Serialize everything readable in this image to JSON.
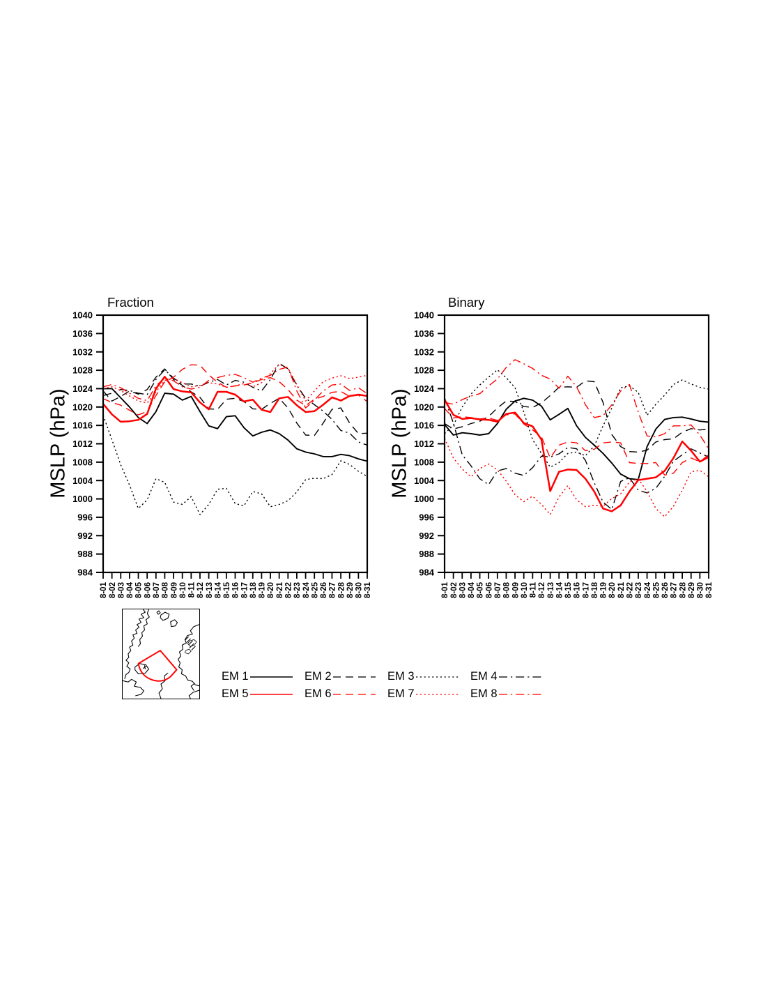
{
  "chart_data": [
    {
      "type": "line",
      "title": "Fraction",
      "ylabel": "MSLP (hPa)",
      "ylim": [
        984,
        1040
      ],
      "ytick_step": 4,
      "y_ticks": [
        984,
        988,
        992,
        996,
        1000,
        1004,
        1008,
        1012,
        1016,
        1020,
        1024,
        1028,
        1032,
        1036,
        1040
      ],
      "grid": false,
      "x_labels": [
        "8-01",
        "8-02",
        "8-03",
        "8-04",
        "8-05",
        "8-06",
        "8-07",
        "8-08",
        "8-09",
        "8-10",
        "8-11",
        "8-12",
        "8-13",
        "8-14",
        "8-15",
        "8-16",
        "8-17",
        "8-18",
        "8-19",
        "8-20",
        "8-21",
        "8-22",
        "8-23",
        "8-24",
        "8-25",
        "8-26",
        "8-27",
        "8-28",
        "8-29",
        "8-30",
        "8-31"
      ],
      "series": [
        {
          "name": "EM 1",
          "color": "#000000",
          "style": "solid",
          "values": [
            1024,
            1024,
            1022,
            1020,
            1017.7,
            1016.4,
            1019,
            1023,
            1022.8,
            1021.5,
            1022.3,
            1019,
            1015.9,
            1015.3,
            1017.9,
            1018.1,
            1015.5,
            1013.7,
            1014.5,
            1015,
            1014.2,
            1012.8,
            1010.9,
            1010.2,
            1009.8,
            1009.2,
            1009.2,
            1009.7,
            1009.4,
            1008.7,
            1008.2
          ]
        },
        {
          "name": "EM 2",
          "color": "#000000",
          "style": "dash",
          "values": [
            1023.5,
            1021.3,
            1022.3,
            1023.5,
            1022.8,
            1023.8,
            1026.5,
            1028.3,
            1026,
            1024.7,
            1023.3,
            1022.1,
            1019.6,
            1019.5,
            1021.7,
            1021.9,
            1021.2,
            1019.6,
            1019.5,
            1020.8,
            1021.9,
            1019.8,
            1016.5,
            1013.9,
            1013.8,
            1016.5,
            1019.5,
            1019.8,
            1016.5,
            1014.2,
            1014.3
          ]
        },
        {
          "name": "EM 3",
          "color": "#000000",
          "style": "dot",
          "values": [
            1018.2,
            1012.9,
            1007.4,
            1003,
            997.9,
            999.8,
            1004.4,
            1003.6,
            999.3,
            998.8,
            1000.5,
            996.6,
            998.8,
            1002.1,
            1002.3,
            999,
            998.5,
            1001.6,
            1001.1,
            998.3,
            998.8,
            999.6,
            1001.5,
            1004.2,
            1004.5,
            1004.4,
            1005.3,
            1008.3,
            1007.5,
            1006,
            1004.9
          ]
        },
        {
          "name": "EM 4",
          "color": "#000000",
          "style": "dashdot",
          "values": [
            1022.5,
            1023,
            1023.8,
            1023.6,
            1023,
            1022.7,
            1026,
            1028.1,
            1026.3,
            1025,
            1025,
            1024.5,
            1025.4,
            1026,
            1024.8,
            1025.8,
            1025.4,
            1024.3,
            1023.5,
            1026,
            1029.5,
            1028.3,
            1024.7,
            1021.9,
            1020.5,
            1019.1,
            1017.3,
            1014.9,
            1014.3,
            1012.4,
            1011.7
          ]
        },
        {
          "name": "EM 5",
          "color": "#ff0000",
          "style": "solid",
          "values": [
            1020.7,
            1018.4,
            1016.8,
            1016.9,
            1017.2,
            1018.5,
            1024,
            1026.6,
            1023.9,
            1023.4,
            1023.2,
            1021,
            1019.5,
            1023.3,
            1023.3,
            1022.7,
            1021.2,
            1021.6,
            1019.4,
            1018.9,
            1021.9,
            1022.2,
            1020.4,
            1018.9,
            1019.1,
            1020.5,
            1022.1,
            1021.4,
            1022.4,
            1022.7,
            1022.4
          ]
        },
        {
          "name": "EM 6",
          "color": "#ff0000",
          "style": "dash",
          "values": [
            1021.8,
            1021,
            1020.4,
            1019.3,
            1018.3,
            1019,
            1022.5,
            1025.5,
            1026.5,
            1028.2,
            1029.2,
            1029.1,
            1027,
            1025.4,
            1024.3,
            1024.6,
            1024.8,
            1025.3,
            1026,
            1026.4,
            1025.5,
            1023.8,
            1021.5,
            1020.3,
            1021.7,
            1022.3,
            1023.2,
            1023.4,
            1022.3,
            1022.6,
            1021.2
          ]
        },
        {
          "name": "EM 7",
          "color": "#ff0000",
          "style": "dot",
          "values": [
            1024,
            1024.4,
            1023.6,
            1022.4,
            1021.3,
            1020.9,
            1023.3,
            1025.8,
            1026.2,
            1025.3,
            1024.4,
            1024.7,
            1025.3,
            1025,
            1024.3,
            1024.6,
            1025.1,
            1024.4,
            1025.3,
            1027.3,
            1029.3,
            1028.4,
            1024.9,
            1021.3,
            1023.5,
            1025.5,
            1026.3,
            1026.8,
            1026.2,
            1026.5,
            1026.9
          ]
        },
        {
          "name": "EM 8",
          "color": "#ff0000",
          "style": "dashdot",
          "values": [
            1024.4,
            1024.9,
            1024.2,
            1023,
            1021.9,
            1021.4,
            1024.6,
            1026.3,
            1025.7,
            1024.4,
            1023.9,
            1024.3,
            1025.8,
            1026.4,
            1026.9,
            1027.1,
            1026.4,
            1025.4,
            1026.3,
            1026.9,
            1028.2,
            1028.7,
            1023.5,
            1019.8,
            1021.5,
            1023.5,
            1024.8,
            1025,
            1023.6,
            1024.2,
            1022.9
          ]
        }
      ]
    },
    {
      "type": "line",
      "title": "Binary",
      "ylabel": "MSLP (hPa)",
      "ylim": [
        984,
        1040
      ],
      "ytick_step": 4,
      "y_ticks": [
        984,
        988,
        992,
        996,
        1000,
        1004,
        1008,
        1012,
        1016,
        1020,
        1024,
        1028,
        1032,
        1036,
        1040
      ],
      "grid": false,
      "x_labels": [
        "8-01",
        "8-02",
        "8-03",
        "8-04",
        "8-05",
        "8-06",
        "8-07",
        "8-08",
        "8-09",
        "8-10",
        "8-11",
        "8-12",
        "8-13",
        "8-14",
        "8-15",
        "8-16",
        "8-17",
        "8-18",
        "8-19",
        "8-20",
        "8-21",
        "8-22",
        "8-23",
        "8-24",
        "8-25",
        "8-26",
        "8-27",
        "8-28",
        "8-29",
        "8-30",
        "8-31"
      ],
      "series": [
        {
          "name": "EM 1",
          "color": "#000000",
          "style": "solid",
          "values": [
            1016.2,
            1013.9,
            1014.4,
            1014.2,
            1013.9,
            1014.2,
            1016.4,
            1019.5,
            1021.3,
            1021.9,
            1021.5,
            1020.2,
            1017.2,
            1018.4,
            1019.7,
            1015.9,
            1013.4,
            1011.7,
            1009.9,
            1007.8,
            1005.4,
            1004.4,
            1004.2,
            1011.4,
            1015.2,
            1017.3,
            1017.7,
            1017.8,
            1017.4,
            1016.9,
            1016.7
          ]
        },
        {
          "name": "EM 2",
          "color": "#000000",
          "style": "dash",
          "values": [
            1016.4,
            1015.2,
            1015.7,
            1016.4,
            1016.9,
            1017.9,
            1019.8,
            1021.3,
            1021.2,
            1020.1,
            1019.9,
            1020.9,
            1022.5,
            1024.3,
            1024.4,
            1024.3,
            1025.7,
            1025.5,
            1021,
            1014,
            1011.4,
            1010.3,
            1010.2,
            1010.6,
            1012.4,
            1012.9,
            1013.1,
            1014.5,
            1015.3,
            1015,
            1015.2
          ]
        },
        {
          "name": "EM 3",
          "color": "#000000",
          "style": "dot",
          "values": [
            1014.2,
            1016,
            1020,
            1022.8,
            1024.8,
            1026.5,
            1028.1,
            1026.4,
            1024.2,
            1018.9,
            1012.9,
            1009.9,
            1006.9,
            1007.9,
            1009.9,
            1010.2,
            1009.4,
            1011.5,
            1015.9,
            1019.8,
            1024.2,
            1024.6,
            1023.2,
            1018.2,
            1020.6,
            1022.6,
            1024.9,
            1025.9,
            1025,
            1024.3,
            1023.9
          ]
        },
        {
          "name": "EM 4",
          "color": "#000000",
          "style": "dashdot",
          "values": [
            1022,
            1016.5,
            1009.6,
            1007.2,
            1004.4,
            1003.1,
            1006.1,
            1006.6,
            1005.6,
            1005.1,
            1006.8,
            1009.3,
            1009.1,
            1009.8,
            1011.2,
            1010.9,
            1008.4,
            1003.5,
            999.3,
            997.7,
            1003.8,
            1004.6,
            1001.9,
            1001.3,
            1002.3,
            1004.9,
            1008.2,
            1009.6,
            1010.9,
            1010,
            1009.1
          ]
        },
        {
          "name": "EM 5",
          "color": "#ff0000",
          "style": "solid",
          "values": [
            1021.6,
            1018.3,
            1017.4,
            1017.6,
            1017.3,
            1017.2,
            1016.8,
            1018.5,
            1018.8,
            1016.5,
            1015.8,
            1012.9,
            1001.7,
            1005.9,
            1006.4,
            1006.3,
            1004.4,
            1001.6,
            997.9,
            997.3,
            998.6,
            1001.6,
            1004.1,
            1004.4,
            1004.7,
            1006.1,
            1008.9,
            1012.5,
            1010.5,
            1008.1,
            1009.1
          ]
        },
        {
          "name": "EM 6",
          "color": "#ff0000",
          "style": "dash",
          "values": [
            1019.7,
            1017.6,
            1017.9,
            1017.7,
            1017.4,
            1017.6,
            1017.1,
            1018.3,
            1018.5,
            1016.3,
            1015,
            1013.5,
            1008.9,
            1011.7,
            1012.4,
            1012.2,
            1010.5,
            1010.8,
            1012.2,
            1012.4,
            1012.2,
            1007.9,
            1007.7,
            1007.7,
            1007.9,
            1005.2,
            1005.6,
            1007.9,
            1008.9,
            1008.1,
            1009.6
          ]
        },
        {
          "name": "EM 7",
          "color": "#ff0000",
          "style": "dot",
          "values": [
            1013.2,
            1008.9,
            1006.5,
            1004.8,
            1006.6,
            1007.6,
            1006.3,
            1003.9,
            1000.9,
            999.4,
            1000.6,
            998.8,
            996.6,
            1000.4,
            1002.9,
            999.8,
            998.3,
            998.6,
            998.4,
            1000.1,
            1001.1,
            1003.7,
            1004.4,
            1001.6,
            997.9,
            996.1,
            998.4,
            1001.9,
            1005.9,
            1006.2,
            1004.8
          ]
        },
        {
          "name": "EM 8",
          "color": "#ff0000",
          "style": "dashdot",
          "values": [
            1021,
            1020.6,
            1021.6,
            1022.4,
            1022.9,
            1024.6,
            1026.1,
            1028.6,
            1030.3,
            1029.4,
            1028.4,
            1026.9,
            1026.1,
            1024.1,
            1026.7,
            1024.4,
            1020.5,
            1017.7,
            1018.1,
            1020.5,
            1023.5,
            1024.9,
            1018.9,
            1013.7,
            1013.5,
            1014.2,
            1015.9,
            1015.9,
            1016.1,
            1013.9,
            1010.9
          ]
        }
      ]
    }
  ],
  "legend": {
    "entries": [
      {
        "label": "EM 1",
        "color": "#000000",
        "style": "solid"
      },
      {
        "label": "EM 2",
        "color": "#000000",
        "style": "dash"
      },
      {
        "label": "EM 3",
        "color": "#000000",
        "style": "dot"
      },
      {
        "label": "EM 4",
        "color": "#000000",
        "style": "dashdot"
      },
      {
        "label": "EM 5",
        "color": "#ff0000",
        "style": "solid"
      },
      {
        "label": "EM 6",
        "color": "#ff0000",
        "style": "dash"
      },
      {
        "label": "EM 7",
        "color": "#ff0000",
        "style": "dot"
      },
      {
        "label": "EM 8",
        "color": "#ff0000",
        "style": "dashdot"
      }
    ]
  },
  "map_inset": {
    "coast_color": "#000000",
    "region_outline_color": "#ff0000"
  }
}
